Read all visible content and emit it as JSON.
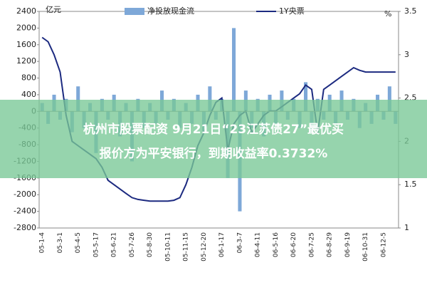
{
  "chart_data": {
    "type": "bar-line",
    "y_unit": "亿元",
    "y2_unit": "%",
    "categories": [
      "05-1-4",
      null,
      null,
      "05-3-1",
      null,
      null,
      "05-4-5",
      null,
      null,
      "05-5-17",
      null,
      null,
      "05-6-21",
      null,
      null,
      "05-7-26",
      null,
      null,
      "05-8-30",
      null,
      null,
      "05-10-11",
      null,
      null,
      "05-11-15",
      null,
      null,
      "05-12-20",
      null,
      null,
      "06-1-17",
      null,
      null,
      "06-3-7",
      null,
      null,
      "06-4-11",
      null,
      null,
      "06-5-16",
      null,
      null,
      "06-6-20",
      null,
      null,
      "06-7-25",
      null,
      null,
      "06-8-29",
      null,
      null,
      "06-9-19",
      null,
      null,
      "06-10-31",
      null,
      null,
      "06-12-5",
      null,
      null
    ],
    "series": [
      {
        "name": "净投放现金流",
        "color": "#7ea8d8",
        "values": [
          200,
          -300,
          400,
          -200,
          300,
          -500,
          600,
          -400,
          200,
          -1000,
          300,
          -200,
          400,
          -600,
          200,
          -1200,
          300,
          -400,
          200,
          -300,
          500,
          -200,
          300,
          -400,
          200,
          -300,
          400,
          -500,
          600,
          -200,
          300,
          -1600,
          2000,
          -2400,
          500,
          -400,
          300,
          -600,
          400,
          -300,
          500,
          -200,
          300,
          -400,
          700,
          -500,
          300,
          -200,
          400,
          -300,
          500,
          -200,
          300,
          -400,
          200,
          -300,
          400,
          -200,
          600,
          -300
        ]
      },
      {
        "name": "1Y央票",
        "color": "#1c2a80",
        "axis": "y2",
        "values": [
          3.2,
          3.15,
          3.0,
          2.8,
          2.3,
          2.0,
          1.95,
          1.9,
          1.85,
          1.8,
          1.7,
          1.55,
          1.5,
          1.45,
          1.4,
          1.35,
          1.33,
          1.32,
          1.31,
          1.31,
          1.31,
          1.31,
          1.32,
          1.35,
          1.5,
          1.7,
          1.95,
          2.1,
          2.3,
          2.45,
          2.5,
          1.9,
          2.2,
          2.3,
          2.35,
          2.1,
          2.2,
          2.3,
          2.35,
          2.35,
          2.4,
          2.45,
          2.5,
          2.55,
          2.65,
          2.6,
          2.1,
          2.6,
          2.65,
          2.7,
          2.75,
          2.8,
          2.85,
          2.82,
          2.8,
          2.8,
          2.8,
          2.8,
          2.8,
          2.8
        ]
      }
    ],
    "ylim": [
      -2800,
      2400
    ],
    "yticks": [
      -2800,
      -2400,
      -2000,
      -1600,
      -1200,
      -800,
      -400,
      0,
      400,
      800,
      1200,
      1600,
      2000,
      2400
    ],
    "y2lim": [
      1,
      3.5
    ],
    "y2ticks": [
      1,
      1.5,
      2,
      2.5,
      3,
      3.5
    ]
  },
  "overlay": {
    "lines": [
      "杭州市股票配资 9月21日“23江苏债27”最优买",
      "报价方为平安银行，到期收益率0.3732%"
    ]
  }
}
